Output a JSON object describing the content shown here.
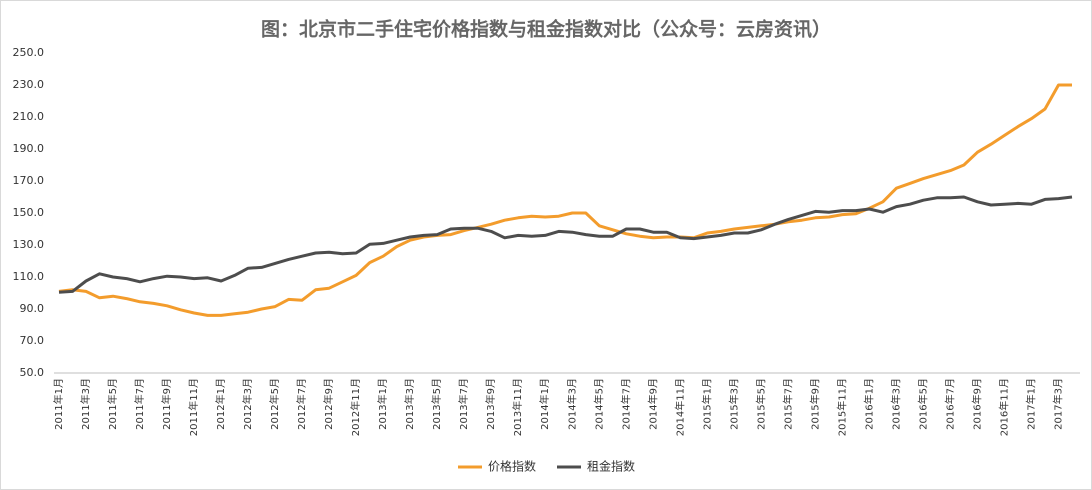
{
  "chart_data": {
    "type": "line",
    "title": "图：北京市二手住宅价格指数与租金指数对比（公众号：云房资讯）",
    "categories": [
      "2011年1月",
      null,
      "2011年3月",
      null,
      "2011年5月",
      null,
      "2011年7月",
      null,
      "2011年9月",
      null,
      "2011年11月",
      null,
      "2012年1月",
      null,
      "2012年3月",
      null,
      "2012年5月",
      null,
      "2012年7月",
      null,
      "2012年9月",
      null,
      "2012年11月",
      null,
      "2013年1月",
      null,
      "2013年3月",
      null,
      "2013年5月",
      null,
      "2013年7月",
      null,
      "2013年9月",
      null,
      "2013年11月",
      null,
      "2014年1月",
      null,
      "2014年3月",
      null,
      "2014年5月",
      null,
      "2014年7月",
      null,
      "2014年9月",
      null,
      "2014年11月",
      null,
      "2015年1月",
      null,
      "2015年3月",
      null,
      "2015年5月",
      null,
      "2015年7月",
      null,
      "2015年9月",
      null,
      "2015年11月",
      null,
      "2016年1月",
      null,
      "2016年3月",
      null,
      "2016年5月",
      null,
      "2016年7月",
      null,
      "2016年9月",
      null,
      "2016年11月",
      null,
      "2017年1月",
      null,
      "2017年3月",
      null
    ],
    "series": [
      {
        "name": "价格指数",
        "color": "#f39c2c",
        "values": [
          101,
          102,
          101,
          97,
          98,
          96.5,
          94.5,
          93.5,
          92,
          89.5,
          87.5,
          86,
          86,
          87,
          88,
          90,
          91.5,
          96,
          95.5,
          102,
          103,
          107,
          111,
          119,
          123,
          129,
          133,
          135,
          136,
          136.5,
          139,
          141,
          143,
          145.5,
          147,
          148,
          147.5,
          148,
          150,
          150,
          142,
          139.5,
          137,
          135.5,
          134.5,
          135,
          135,
          134.5,
          137.5,
          138.5,
          140,
          141,
          142,
          143,
          144.5,
          145.5,
          147,
          147.5,
          149,
          149.5,
          153,
          157,
          165.5,
          168.5,
          171.5,
          174,
          176.5,
          180,
          188,
          193,
          198.5,
          204,
          209,
          215,
          230,
          230
        ]
      },
      {
        "name": "租金指数",
        "color": "#4d4d4d",
        "values": [
          100.5,
          101,
          107.5,
          112,
          110,
          109,
          107,
          109,
          110.5,
          110,
          109,
          109.5,
          107.5,
          111,
          115.5,
          116,
          118.5,
          121,
          123,
          125,
          125.5,
          124.5,
          125,
          130.5,
          131,
          133,
          135,
          136,
          136.5,
          140,
          140.5,
          140.5,
          138.5,
          134.5,
          136,
          135.5,
          136,
          138.5,
          138,
          136.5,
          135.5,
          135.5,
          140,
          140,
          138,
          138,
          134.5,
          134,
          135,
          136,
          137.5,
          137.5,
          139.5,
          143,
          146,
          148.5,
          151,
          150.5,
          151.5,
          151.5,
          152.5,
          150.5,
          154,
          155.5,
          158,
          159.5,
          159.5,
          160,
          157,
          155,
          155.5,
          156,
          155.5,
          158.5,
          159,
          160
        ]
      }
    ],
    "ylim": [
      50,
      250
    ],
    "yticks": [
      {
        "value": 50,
        "label": "50.0"
      },
      {
        "value": 70,
        "label": "70.0"
      },
      {
        "value": 90,
        "label": "90.0"
      },
      {
        "value": 110,
        "label": "110.0"
      },
      {
        "value": 130,
        "label": "130.0"
      },
      {
        "value": 150,
        "label": "150.0"
      },
      {
        "value": 170,
        "label": "170.0"
      },
      {
        "value": 190,
        "label": "190.0"
      },
      {
        "value": 210,
        "label": "210.0"
      },
      {
        "value": 230,
        "label": "230.0"
      },
      {
        "value": 250,
        "label": "250.0"
      }
    ],
    "grid": false,
    "legend": "bottom"
  }
}
